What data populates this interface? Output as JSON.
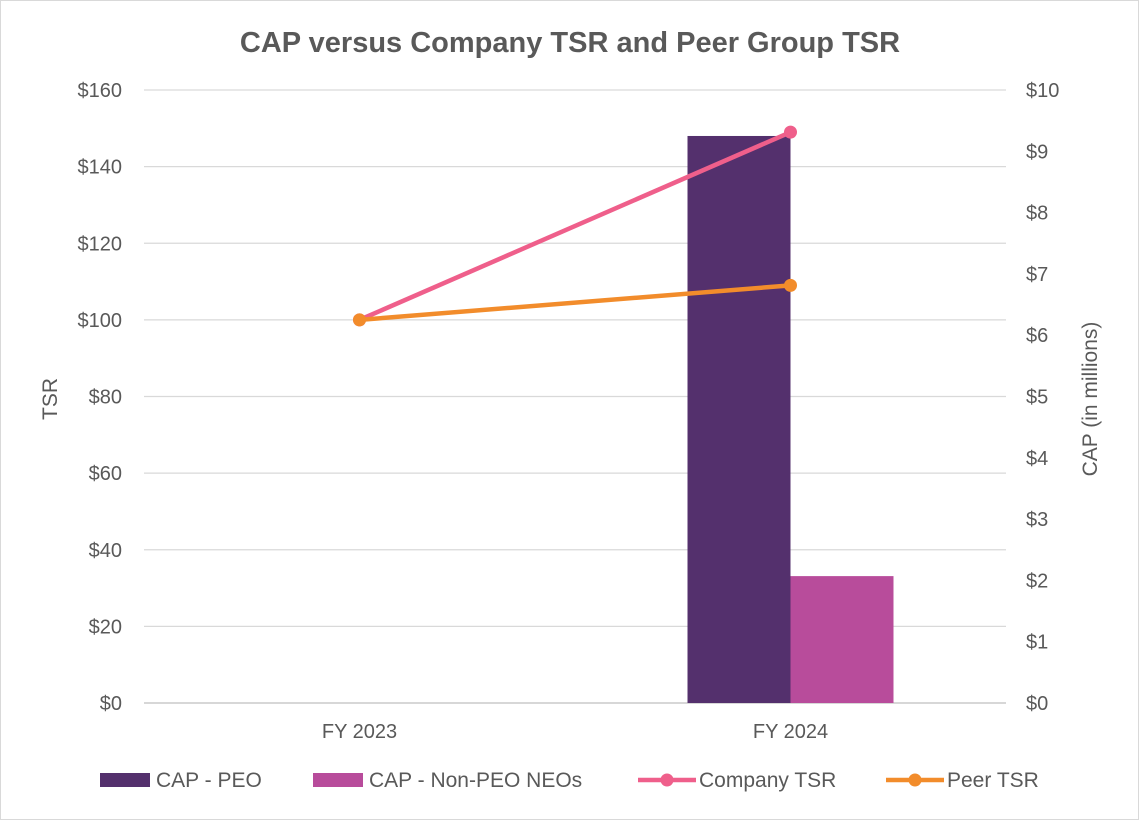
{
  "chart_data": {
    "type": "bar",
    "title": "CAP versus Company  TSR and Peer Group TSR",
    "categories": [
      "FY 2023",
      "FY 2024"
    ],
    "left_axis": {
      "label": "TSR",
      "ylim": [
        0,
        160
      ],
      "ticks": [
        0,
        20,
        40,
        60,
        80,
        100,
        120,
        140,
        160
      ],
      "tick_labels": [
        "$0",
        "$20",
        "$40",
        "$60",
        "$80",
        "$100",
        "$120",
        "$140",
        "$160"
      ]
    },
    "right_axis": {
      "label": "CAP (in millions)",
      "ylim": [
        0,
        10
      ],
      "ticks": [
        0,
        1,
        2,
        3,
        4,
        5,
        6,
        7,
        8,
        9,
        10
      ],
      "tick_labels": [
        "$0",
        "$1",
        "$2",
        "$3",
        "$4",
        "$5",
        "$6",
        "$7",
        "$8",
        "$9",
        "$10"
      ]
    },
    "grid": true,
    "legend_position": "bottom",
    "series": [
      {
        "name": "CAP - PEO",
        "kind": "bar",
        "axis": "right",
        "color": "#54306d",
        "values": [
          0,
          9.25
        ]
      },
      {
        "name": "CAP - Non-PEO NEOs",
        "kind": "bar",
        "axis": "right",
        "color": "#b84c9b",
        "values": [
          0,
          2.07
        ]
      },
      {
        "name": "Company TSR",
        "kind": "line",
        "axis": "left",
        "color": "#ef5f8b",
        "values": [
          100,
          149
        ]
      },
      {
        "name": "Peer TSR",
        "kind": "line",
        "axis": "left",
        "color": "#f28c2b",
        "values": [
          100,
          109
        ]
      }
    ]
  }
}
